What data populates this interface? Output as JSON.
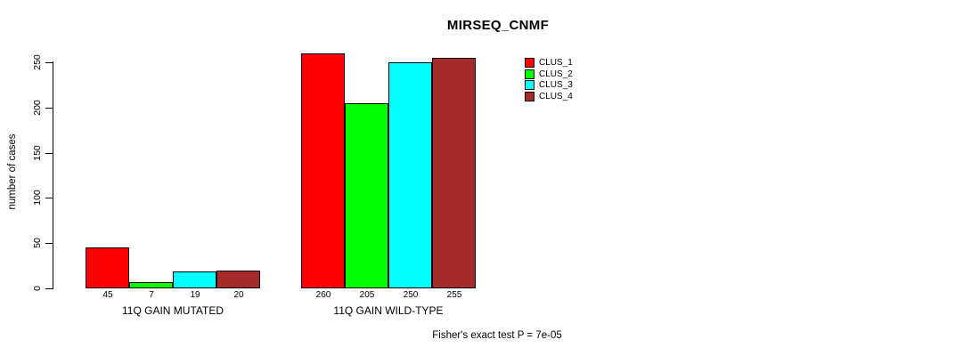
{
  "chart_data": {
    "type": "bar",
    "title": "MIRSEQ_CNMF",
    "ylabel": "number of cases",
    "xlabel": "",
    "ylim": [
      0,
      250
    ],
    "yticks": [
      0,
      50,
      100,
      150,
      200,
      250
    ],
    "categories": [
      "11Q GAIN MUTATED",
      "11Q GAIN WILD-TYPE"
    ],
    "series": [
      {
        "name": "CLUS_1",
        "color": "#FF0000",
        "values": [
          45,
          260
        ]
      },
      {
        "name": "CLUS_2",
        "color": "#00FF00",
        "values": [
          7,
          205
        ]
      },
      {
        "name": "CLUS_3",
        "color": "#00FFFF",
        "values": [
          19,
          250
        ]
      },
      {
        "name": "CLUS_4",
        "color": "#A52A2A",
        "values": [
          20,
          255
        ]
      }
    ],
    "bar_value_labels_shown": true,
    "legend_position": "right",
    "grid": false,
    "annotation": "Fisher's exact test P = 7e-05",
    "colors": {
      "background": "#FFFFFF",
      "axis": "#000000",
      "text": "#000000",
      "bar_border": "#000000"
    }
  }
}
